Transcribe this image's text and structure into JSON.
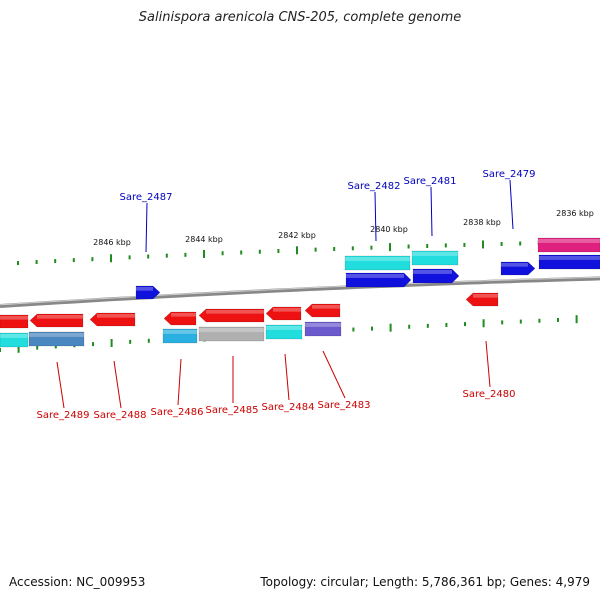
{
  "title": "Salinispora arenicola CNS-205, complete genome",
  "footer": {
    "accession": "Accession: NC_009953",
    "summary": "Topology: circular; Length: 5,786,361 bp; Genes: 4,979"
  },
  "scale_labels": [
    "2846 kbp",
    "2844 kbp",
    "2842 kbp",
    "2840 kbp",
    "2838 kbp",
    "2836 kbp"
  ],
  "gene_labels_top": [
    "Sare_2487",
    "Sare_2482",
    "Sare_2481",
    "Sare_2479"
  ],
  "gene_labels_bottom": [
    "Sare_2489",
    "Sare_2488",
    "Sare_2486",
    "Sare_2485",
    "Sare_2484",
    "Sare_2483",
    "Sare_2480"
  ],
  "colors": {
    "forward_label": "#0000bb",
    "reverse_label": "#cc0000",
    "backbone": "#888888",
    "tick": "#1e8c1e",
    "gene_red": "#ee1111",
    "gene_blue": "#1111dd",
    "gene_cyan": "#22dddd",
    "gene_magenta": "#e0207f",
    "gene_skyblue": "#2ab0e0",
    "gene_steel": "#4a86c0",
    "gene_gray": "#b0b0b0",
    "gene_slate": "#6a5acd"
  }
}
